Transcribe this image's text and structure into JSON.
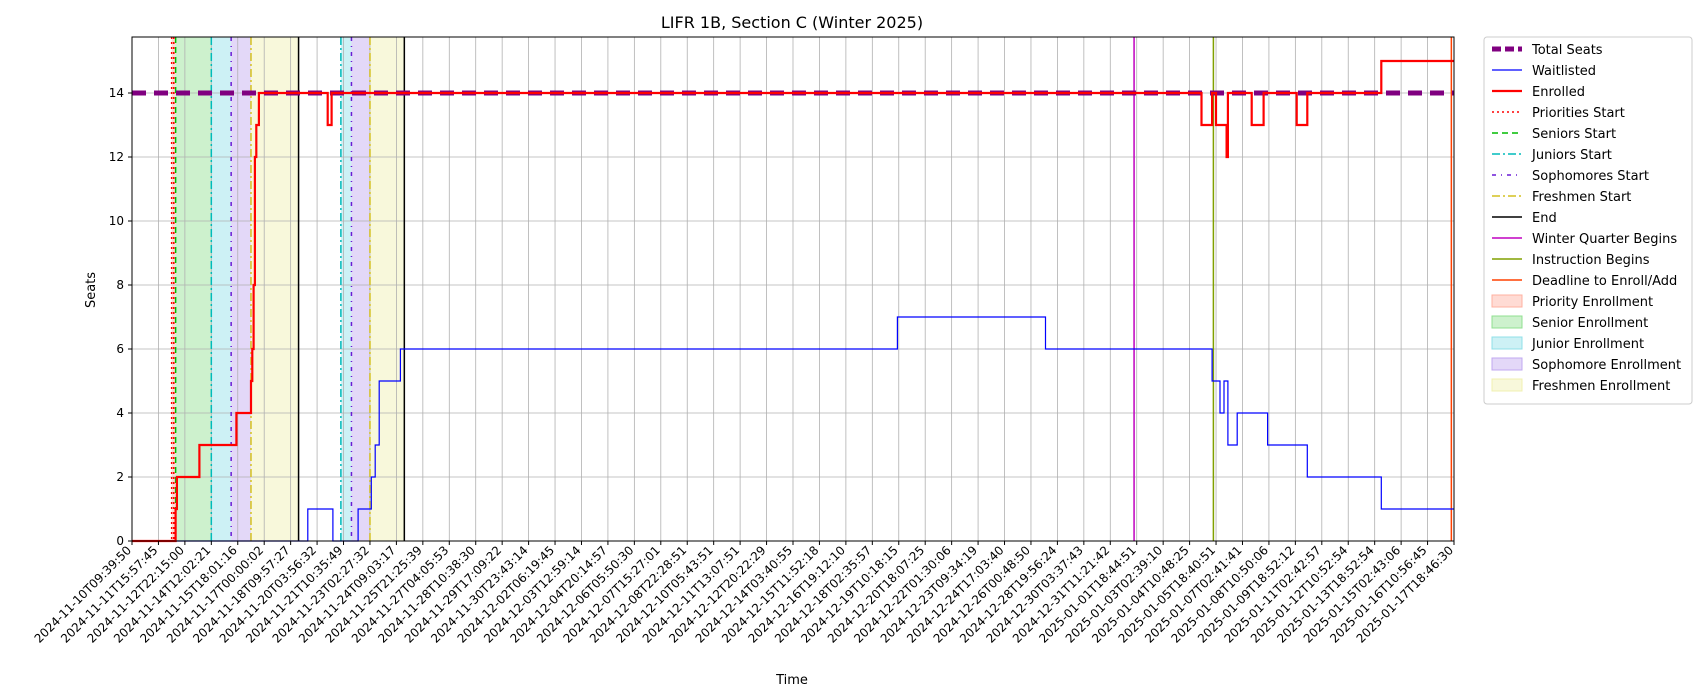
{
  "chart_data": {
    "type": "line",
    "title": "LIFR 1B, Section C (Winter 2025)",
    "xlabel": "Time",
    "ylabel": "Seats",
    "ylim": [
      0,
      15.75
    ],
    "yticks": [
      0,
      2,
      4,
      6,
      8,
      10,
      12,
      14
    ],
    "grid": true,
    "legend_position": "outside-right",
    "x_start": "2024-11-10T09:39:50",
    "x_end": "2025-01-17T18:46:30",
    "xticks": [
      "2024-11-10T09:39:50",
      "2024-11-11T15:57:45",
      "2024-11-12T22:15:00",
      "2024-11-14T12:02:21",
      "2024-11-15T18:01:16",
      "2024-11-17T00:00:02",
      "2024-11-18T09:57:27",
      "2024-11-20T03:56:32",
      "2024-11-21T10:35:49",
      "2024-11-23T02:27:32",
      "2024-11-24T09:03:17",
      "2024-11-25T21:25:39",
      "2024-11-27T04:05:53",
      "2024-11-28T10:38:30",
      "2024-11-29T17:09:22",
      "2024-11-30T23:43:14",
      "2024-12-02T06:19:45",
      "2024-12-03T12:59:14",
      "2024-12-04T20:14:57",
      "2024-12-06T05:50:30",
      "2024-12-07T15:27:01",
      "2024-12-08T22:28:51",
      "2024-12-10T05:43:51",
      "2024-12-11T13:07:51",
      "2024-12-12T20:22:29",
      "2024-12-14T03:40:55",
      "2024-12-15T11:52:18",
      "2024-12-16T19:12:10",
      "2024-12-18T02:35:57",
      "2024-12-19T10:18:15",
      "2024-12-20T18:07:25",
      "2024-12-22T01:30:06",
      "2024-12-23T09:34:19",
      "2024-12-24T17:03:40",
      "2024-12-26T00:48:50",
      "2024-12-28T19:56:24",
      "2024-12-30T03:37:43",
      "2024-12-31T11:21:42",
      "2025-01-01T18:44:51",
      "2025-01-03T02:39:10",
      "2025-01-04T10:48:25",
      "2025-01-05T18:40:51",
      "2025-01-07T02:41:41",
      "2025-01-08T10:50:06",
      "2025-01-09T18:52:12",
      "2025-01-11T02:42:57",
      "2025-01-12T10:52:54",
      "2025-01-13T18:52:54",
      "2025-01-15T02:43:06",
      "2025-01-16T10:56:45",
      "2025-01-17T18:46:30"
    ],
    "series": [
      {
        "name": "Total Seats",
        "color": "#800080",
        "style": "dashed-thick",
        "points": [
          [
            0,
            14
          ],
          [
            50,
            14
          ]
        ]
      },
      {
        "name": "Waitlisted",
        "color": "#0000ff",
        "style": "solid-thin",
        "step": true,
        "points": [
          [
            0,
            0
          ],
          [
            6.5,
            0
          ],
          [
            6.65,
            1
          ],
          [
            7.5,
            1
          ],
          [
            7.6,
            0
          ],
          [
            8.5,
            0
          ],
          [
            8.55,
            1
          ],
          [
            9.0,
            1
          ],
          [
            9.05,
            2
          ],
          [
            9.15,
            2
          ],
          [
            9.2,
            3
          ],
          [
            9.3,
            3
          ],
          [
            9.35,
            5
          ],
          [
            10.1,
            5
          ],
          [
            10.15,
            6
          ],
          [
            28.9,
            6
          ],
          [
            28.95,
            7
          ],
          [
            34.5,
            7
          ],
          [
            34.55,
            6
          ],
          [
            40.8,
            6
          ],
          [
            40.85,
            5
          ],
          [
            41.1,
            5
          ],
          [
            41.15,
            4
          ],
          [
            41.25,
            4
          ],
          [
            41.3,
            5
          ],
          [
            41.4,
            5
          ],
          [
            41.45,
            3
          ],
          [
            41.75,
            3
          ],
          [
            41.8,
            4
          ],
          [
            42.9,
            4
          ],
          [
            42.95,
            3
          ],
          [
            44.4,
            3
          ],
          [
            44.45,
            2
          ],
          [
            47.2,
            2
          ],
          [
            47.25,
            1
          ],
          [
            50,
            1
          ]
        ]
      },
      {
        "name": "Enrolled",
        "color": "#ff0000",
        "style": "solid-thick",
        "step": true,
        "points": [
          [
            0,
            0
          ],
          [
            1.6,
            0
          ],
          [
            1.65,
            1
          ],
          [
            1.7,
            2
          ],
          [
            2.5,
            2
          ],
          [
            2.55,
            3
          ],
          [
            3.9,
            3
          ],
          [
            3.95,
            4
          ],
          [
            4.45,
            4
          ],
          [
            4.5,
            5
          ],
          [
            4.55,
            6
          ],
          [
            4.6,
            8
          ],
          [
            4.65,
            12
          ],
          [
            4.7,
            13
          ],
          [
            4.8,
            14
          ],
          [
            7.35,
            14
          ],
          [
            7.4,
            13
          ],
          [
            7.5,
            13
          ],
          [
            7.55,
            14
          ],
          [
            40.4,
            14
          ],
          [
            40.45,
            13
          ],
          [
            40.8,
            13
          ],
          [
            40.85,
            14
          ],
          [
            40.95,
            14
          ],
          [
            41.0,
            13
          ],
          [
            41.35,
            13
          ],
          [
            41.4,
            12
          ],
          [
            41.45,
            14
          ],
          [
            42.3,
            14
          ],
          [
            42.35,
            13
          ],
          [
            42.75,
            13
          ],
          [
            42.8,
            14
          ],
          [
            44.0,
            14
          ],
          [
            44.05,
            13
          ],
          [
            44.4,
            13
          ],
          [
            44.45,
            14
          ],
          [
            47.2,
            14
          ],
          [
            47.25,
            15
          ],
          [
            50,
            15
          ]
        ]
      }
    ],
    "vlines": [
      {
        "name": "Priorities Start",
        "x": 1.5,
        "color": "#ff0000",
        "style": "dotted"
      },
      {
        "name": "Priorities Start",
        "x": 1.58,
        "color": "#ff0000",
        "style": "dotted"
      },
      {
        "name": "Seniors Start",
        "x": 1.65,
        "color": "#00bb00",
        "style": "dashed"
      },
      {
        "name": "Juniors Start",
        "x": 3.0,
        "color": "#00bbbb",
        "style": "dashdot"
      },
      {
        "name": "Juniors Start",
        "x": 7.9,
        "color": "#00bbbb",
        "style": "dashdot"
      },
      {
        "name": "Sophomores Start",
        "x": 3.75,
        "color": "#6a1bd6",
        "style": "dashdot2"
      },
      {
        "name": "Sophomores Start",
        "x": 8.3,
        "color": "#6a1bd6",
        "style": "dashdot2"
      },
      {
        "name": "Freshmen Start",
        "x": 4.5,
        "color": "#d4c020",
        "style": "dashdot"
      },
      {
        "name": "Freshmen Start",
        "x": 9.0,
        "color": "#d4c020",
        "style": "dashdot"
      },
      {
        "name": "End",
        "x": 6.3,
        "color": "#000000",
        "style": "solid"
      },
      {
        "name": "End",
        "x": 10.3,
        "color": "#000000",
        "style": "solid"
      },
      {
        "name": "Winter Quarter Begins",
        "x": 37.9,
        "color": "#c000c0",
        "style": "solid"
      },
      {
        "name": "Instruction Begins",
        "x": 40.9,
        "color": "#80a000",
        "style": "solid"
      },
      {
        "name": "Deadline to Enroll/Add",
        "x": 49.9,
        "color": "#ff4000",
        "style": "solid"
      }
    ],
    "spans": [
      {
        "name": "Priority Enrollment",
        "x0": 1.5,
        "x1": 1.65,
        "color": "#ffb0a0"
      },
      {
        "name": "Senior Enrollment",
        "x0": 1.65,
        "x1": 3.0,
        "color": "#90e090"
      },
      {
        "name": "Junior Enrollment",
        "x0": 3.0,
        "x1": 3.75,
        "color": "#90e0e8"
      },
      {
        "name": "Junior Enrollment",
        "x0": 7.9,
        "x1": 8.3,
        "color": "#90e0e8"
      },
      {
        "name": "Sophomore Enrollment",
        "x0": 3.75,
        "x1": 4.5,
        "color": "#c0a8f0"
      },
      {
        "name": "Sophomore Enrollment",
        "x0": 8.3,
        "x1": 9.0,
        "color": "#c0a8f0"
      },
      {
        "name": "Freshmen Enrollment",
        "x0": 4.5,
        "x1": 6.3,
        "color": "#f0f0b0"
      },
      {
        "name": "Freshmen Enrollment",
        "x0": 9.0,
        "x1": 10.3,
        "color": "#f0f0b0"
      }
    ],
    "legend": [
      {
        "label": "Total Seats",
        "kind": "line",
        "color": "#800080",
        "style": "dashed-thick"
      },
      {
        "label": "Waitlisted",
        "kind": "line",
        "color": "#0000ff",
        "style": "solid-thin"
      },
      {
        "label": "Enrolled",
        "kind": "line",
        "color": "#ff0000",
        "style": "solid-thick"
      },
      {
        "label": "Priorities Start",
        "kind": "line",
        "color": "#ff0000",
        "style": "dotted"
      },
      {
        "label": "Seniors Start",
        "kind": "line",
        "color": "#00bb00",
        "style": "dashed"
      },
      {
        "label": "Juniors Start",
        "kind": "line",
        "color": "#00bbbb",
        "style": "dashdot"
      },
      {
        "label": "Sophomores Start",
        "kind": "line",
        "color": "#6a1bd6",
        "style": "dashdot2"
      },
      {
        "label": "Freshmen Start",
        "kind": "line",
        "color": "#d4c020",
        "style": "dashdot"
      },
      {
        "label": "End",
        "kind": "line",
        "color": "#000000",
        "style": "solid"
      },
      {
        "label": "Winter Quarter Begins",
        "kind": "line",
        "color": "#c000c0",
        "style": "solid"
      },
      {
        "label": "Instruction Begins",
        "kind": "line",
        "color": "#80a000",
        "style": "solid"
      },
      {
        "label": "Deadline to Enroll/Add",
        "kind": "line",
        "color": "#ff4000",
        "style": "solid"
      },
      {
        "label": "Priority Enrollment",
        "kind": "patch",
        "color": "#ffb0a0"
      },
      {
        "label": "Senior Enrollment",
        "kind": "patch",
        "color": "#90e090"
      },
      {
        "label": "Junior Enrollment",
        "kind": "patch",
        "color": "#90e0e8"
      },
      {
        "label": "Sophomore Enrollment",
        "kind": "patch",
        "color": "#c0a8f0"
      },
      {
        "label": "Freshmen Enrollment",
        "kind": "patch",
        "color": "#f0f0b0"
      }
    ]
  }
}
